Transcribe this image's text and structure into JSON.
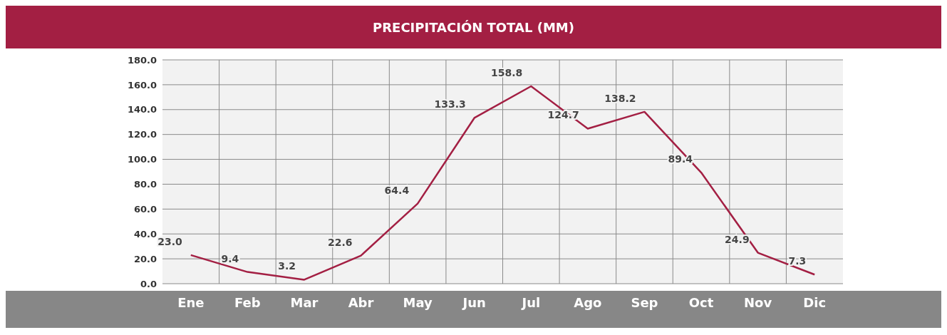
{
  "chart_data": {
    "type": "line",
    "title": "PRECIPITACIÓN TOTAL (MM)",
    "categories": [
      "Ene",
      "Feb",
      "Mar",
      "Abr",
      "May",
      "Jun",
      "Jul",
      "Ago",
      "Sep",
      "Oct",
      "Nov",
      "Dic"
    ],
    "series": [
      {
        "color": "#a31f43",
        "values": [
          23.0,
          9.4,
          3.2,
          22.6,
          64.4,
          133.3,
          158.8,
          124.7,
          138.2,
          89.4,
          24.9,
          7.3
        ],
        "value_labels": [
          "23.0",
          "9.4",
          "3.2",
          "22.6",
          "64.4",
          "133.3",
          "158.8",
          "124.7",
          "138.2",
          "89.4",
          "24.9",
          "7.3"
        ]
      }
    ],
    "ylim": [
      0,
      180
    ],
    "yticks": [
      {
        "value": 0,
        "label": "0.0"
      },
      {
        "value": 20,
        "label": "20.0"
      },
      {
        "value": 40,
        "label": "40.0"
      },
      {
        "value": 60,
        "label": "60.0"
      },
      {
        "value": 80,
        "label": "80.0"
      },
      {
        "value": 100,
        "label": "100.0"
      },
      {
        "value": 120,
        "label": "120.0"
      },
      {
        "value": 140,
        "label": "140.0"
      },
      {
        "value": 160,
        "label": "160.0"
      },
      {
        "value": 180,
        "label": "180.0"
      }
    ],
    "grid": true,
    "legend": false,
    "marker": "none",
    "line_style": "solid"
  }
}
